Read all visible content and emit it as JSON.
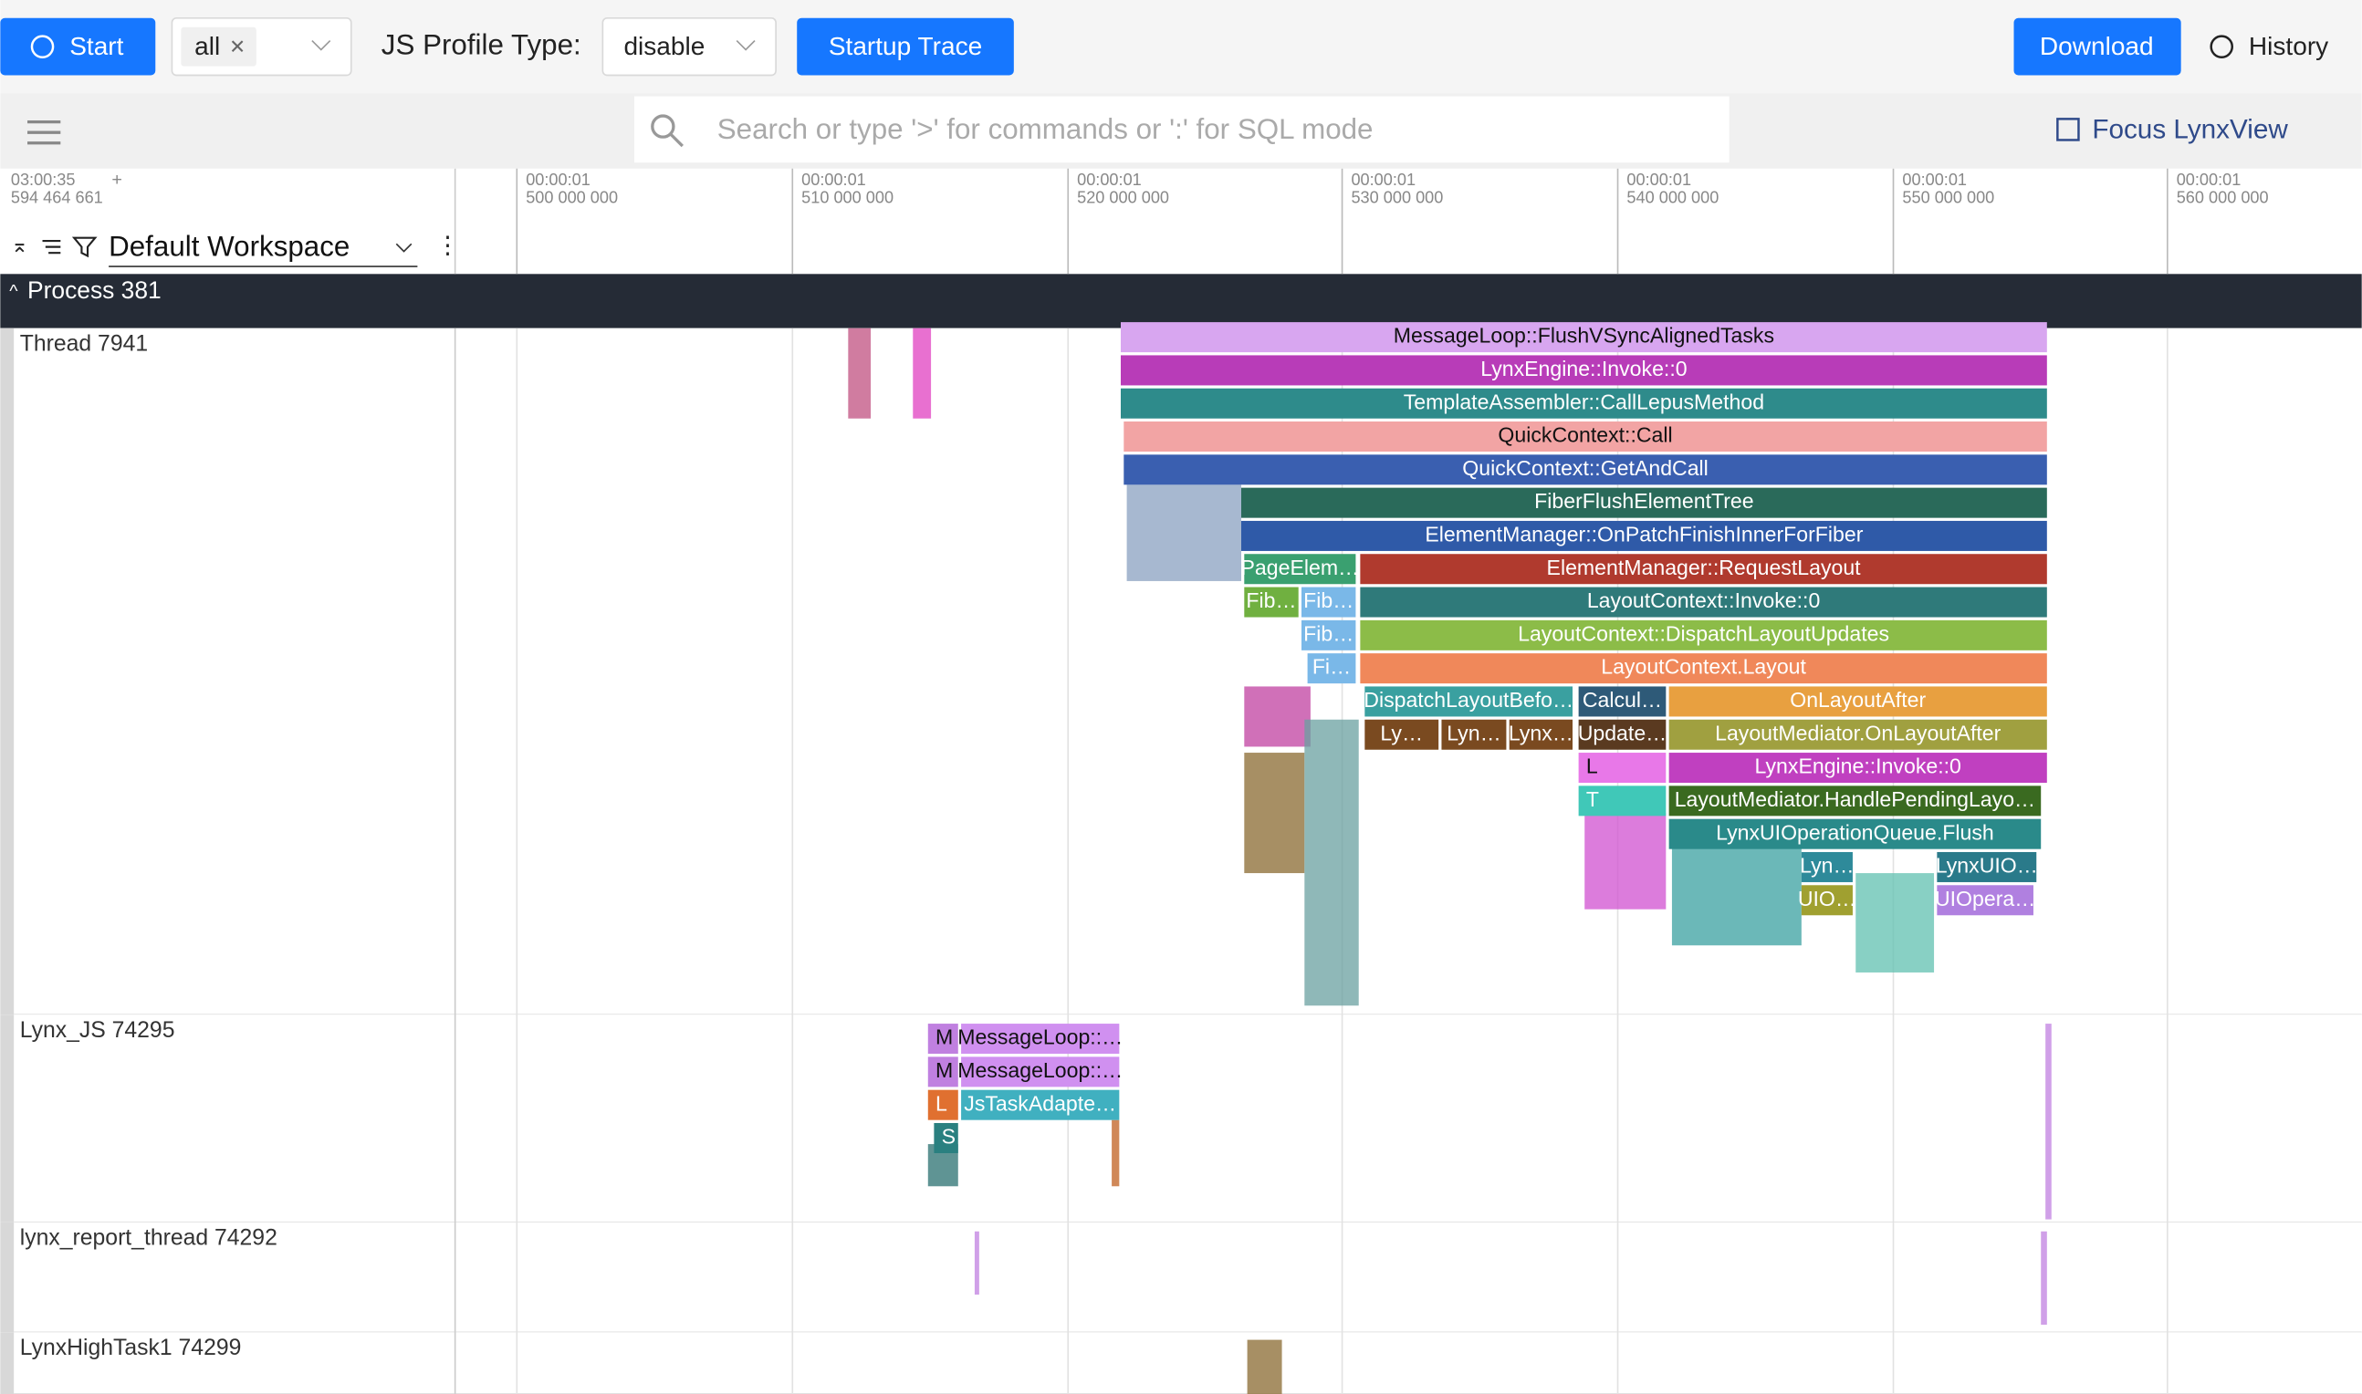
{
  "toolbar": {
    "start": "Start",
    "filter": "all",
    "profile_label": "JS Profile Type:",
    "profile_value": "disable",
    "startup_trace": "Startup Trace",
    "download": "Download",
    "history": "History"
  },
  "search": {
    "placeholder": "Search or type '>' for commands or ':' for SQL mode",
    "focus": "Focus LynxView"
  },
  "timeline": {
    "origin_time": "03:00:35",
    "origin_ns": "594 464 661",
    "ticks": [
      {
        "time": "00:00:01",
        "ns": "500 000 000"
      },
      {
        "time": "00:00:01",
        "ns": "510 000 000"
      },
      {
        "time": "00:00:01",
        "ns": "520 000 000"
      },
      {
        "time": "00:00:01",
        "ns": "530 000 000"
      },
      {
        "time": "00:00:01",
        "ns": "540 000 000"
      },
      {
        "time": "00:00:01",
        "ns": "550 000 000"
      },
      {
        "time": "00:00:01",
        "ns": "560 000 000"
      }
    ]
  },
  "workspace": "Default Workspace",
  "process": "Process 381",
  "threads": [
    {
      "name": "Thread 7941",
      "slices": [
        {
          "label": "MessageLoop::FlushVSyncAlignedTasks",
          "color": "#d8a6f0"
        },
        {
          "label": "LynxEngine::Invoke::0",
          "color": "#b83cb8"
        },
        {
          "label": "TemplateAssembler::CallLepusMethod",
          "color": "#2e8b8b"
        },
        {
          "label": "QuickContext::Call",
          "color": "#f2a4a4"
        },
        {
          "label": "QuickContext::GetAndCall",
          "color": "#3a5fb0"
        },
        {
          "label": "FiberFlushElementTree",
          "color": "#2a6a5a"
        },
        {
          "label": "ElementManager::OnPatchFinishInnerForFiber",
          "color": "#2f5aa8"
        },
        {
          "label": "PageElem…",
          "color": "#3aa070"
        },
        {
          "label": "ElementManager::RequestLayout",
          "color": "#b03a2e"
        },
        {
          "label": "Fib…",
          "color": "#70b040"
        },
        {
          "label": "Fib…",
          "color": "#7ab8e8"
        },
        {
          "label": "LayoutContext::Invoke::0",
          "color": "#2f7a7a"
        },
        {
          "label": "Fib…",
          "color": "#7ab8e8"
        },
        {
          "label": "LayoutContext::DispatchLayoutUpdates",
          "color": "#8cbc48"
        },
        {
          "label": "Fi…",
          "color": "#7ab8e8"
        },
        {
          "label": "LayoutContext.Layout",
          "color": "#f0885a"
        },
        {
          "label": "DispatchLayoutBefo…",
          "color": "#3aa0a0"
        },
        {
          "label": "Calcul…",
          "color": "#2e5a78"
        },
        {
          "label": "OnLayoutAfter",
          "color": "#e8a040"
        },
        {
          "label": "Ly…",
          "color": "#7a4a20"
        },
        {
          "label": "Lyn…",
          "color": "#7a4a20"
        },
        {
          "label": "Lynx…",
          "color": "#7a4a20"
        },
        {
          "label": "Update…",
          "color": "#5a3a20"
        },
        {
          "label": "LayoutMediator.OnLayoutAfter",
          "color": "#a0a040"
        },
        {
          "label": "L",
          "color": "#e878e8"
        },
        {
          "label": "LynxEngine::Invoke::0",
          "color": "#c040c0"
        },
        {
          "label": "T",
          "color": "#40c8b8"
        },
        {
          "label": "LayoutMediator.HandlePendingLayo…",
          "color": "#3a6a20"
        },
        {
          "label": "LynxUIOperationQueue.Flush",
          "color": "#2a8a8a"
        },
        {
          "label": "Lyn…",
          "color": "#2e8a9a"
        },
        {
          "label": "LynxUIO…",
          "color": "#2a7a8a"
        },
        {
          "label": "UIO…",
          "color": "#a0a030"
        },
        {
          "label": "UIOpera…",
          "color": "#b080e0"
        }
      ]
    },
    {
      "name": "Lynx_JS 74295",
      "slices": [
        {
          "label": "M",
          "color": "#c080e0"
        },
        {
          "label": "MessageLoop::…",
          "color": "#d090f0"
        },
        {
          "label": "M",
          "color": "#c080e0"
        },
        {
          "label": "MessageLoop::…",
          "color": "#d090f0"
        },
        {
          "label": "L",
          "color": "#e07030"
        },
        {
          "label": "JsTaskAdapte…",
          "color": "#40b0c0"
        },
        {
          "label": "S",
          "color": "#2a8080"
        }
      ]
    },
    {
      "name": "lynx_report_thread 74292",
      "slices": []
    },
    {
      "name": "LynxHighTask1 74299",
      "slices": []
    }
  ]
}
